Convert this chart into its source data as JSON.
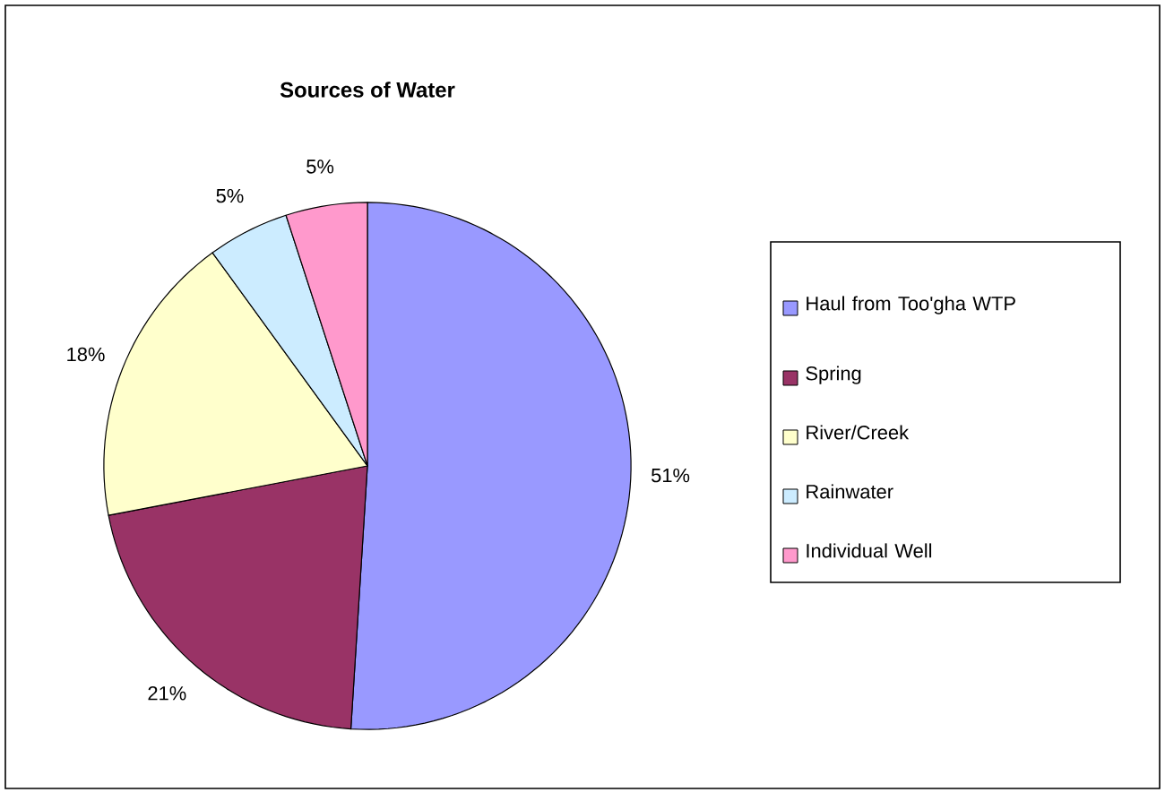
{
  "chart_data": {
    "type": "pie",
    "title": "Sources of Water",
    "legend": "right",
    "categories": [
      "Haul from Too'gha WTP",
      "Spring",
      "River/Creek",
      "Rainwater",
      "Individual Well"
    ],
    "values": [
      51,
      21,
      18,
      5,
      5
    ],
    "value_labels": [
      "51%",
      "21%",
      "18%",
      "5%",
      "5%"
    ],
    "colors": [
      "#9999ff",
      "#993366",
      "#ffffcc",
      "#ccecff",
      "#ff99cc"
    ]
  }
}
